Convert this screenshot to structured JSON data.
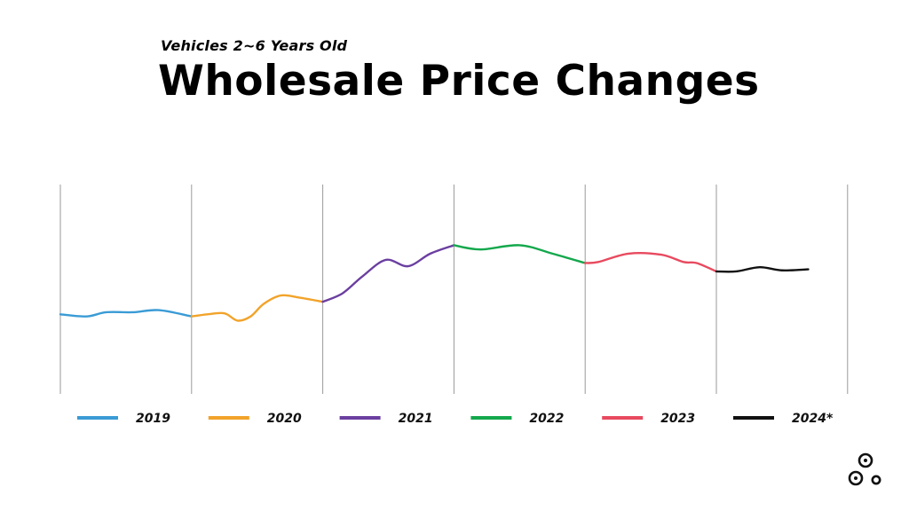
{
  "header": {
    "subtitle": "Vehicles 2~6 Years Old",
    "title": "Wholesale Price Changes"
  },
  "chart_data": {
    "type": "line",
    "title": "Wholesale Price Changes",
    "subtitle": "Vehicles 2~6 Years Old",
    "xlabel": "",
    "ylabel": "",
    "ylim": [
      0,
      100
    ],
    "grid": "vertical lines between years",
    "legend": "bottom",
    "series": [
      {
        "name": "2019",
        "color": "#3a9bd5",
        "x": [
          2019.0,
          2019.2,
          2019.35,
          2019.55,
          2019.75,
          2020.0
        ],
        "y": [
          38,
          37,
          39,
          39,
          40,
          37
        ]
      },
      {
        "name": "2020",
        "color": "#f2a32a",
        "x": [
          2020.0,
          2020.12,
          2020.25,
          2020.35,
          2020.45,
          2020.55,
          2020.68,
          2020.82,
          2021.0
        ],
        "y": [
          37,
          38,
          38.5,
          35,
          37,
          43,
          47,
          46,
          44
        ]
      },
      {
        "name": "2021",
        "color": "#6b3fa0",
        "x": [
          2021.0,
          2021.15,
          2021.3,
          2021.48,
          2021.65,
          2021.82,
          2022.0
        ],
        "y": [
          44,
          48,
          56,
          64,
          61,
          67,
          71
        ]
      },
      {
        "name": "2022",
        "color": "#14a84c",
        "x": [
          2022.0,
          2022.2,
          2022.5,
          2022.75,
          2023.0
        ],
        "y": [
          71,
          69,
          71,
          67,
          62.5
        ]
      },
      {
        "name": "2023",
        "color": "#e84a5f",
        "x": [
          2023.0,
          2023.1,
          2023.33,
          2023.58,
          2023.75,
          2023.85,
          2024.0
        ],
        "y": [
          62.5,
          63,
          67,
          66.5,
          63,
          62.5,
          58.5
        ]
      },
      {
        "name": "2024*",
        "color": "#111111",
        "x": [
          2024.0,
          2024.15,
          2024.33,
          2024.5,
          2024.7
        ],
        "y": [
          58.5,
          58.5,
          60.5,
          59,
          59.5
        ]
      }
    ]
  }
}
